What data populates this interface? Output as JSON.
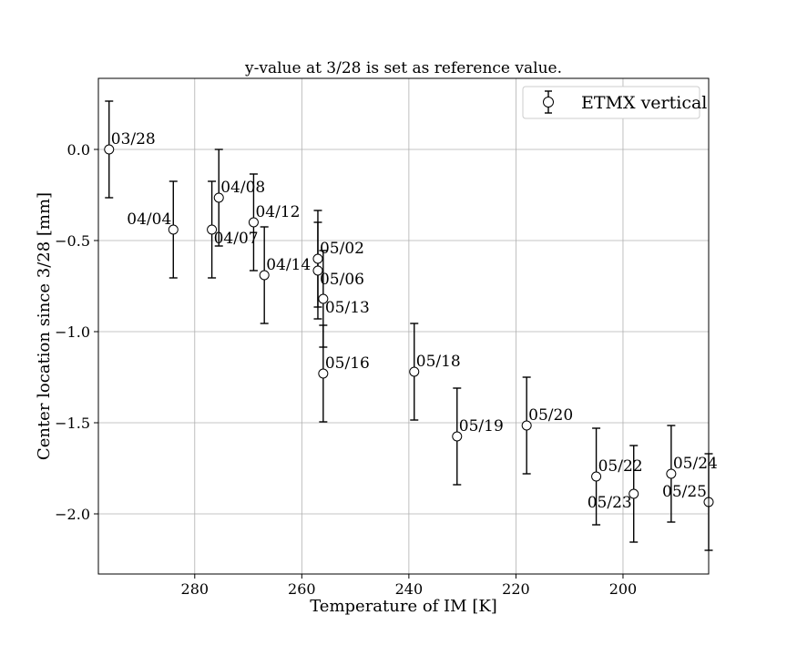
{
  "chart_data": {
    "type": "scatter",
    "title": "y-value at 3/28 is set as reference value.",
    "xlabel": "Temperature of IM [K]",
    "ylabel": "Center location since 3/28 [mm]",
    "x_inverted": true,
    "xlim": [
      298,
      184
    ],
    "ylim": [
      -2.33,
      0.39
    ],
    "xticks": [
      280,
      260,
      240,
      220,
      200
    ],
    "xtick_labels": [
      "280",
      "260",
      "240",
      "220",
      "200"
    ],
    "yticks": [
      0.0,
      -0.5,
      -1.0,
      -1.5,
      -2.0
    ],
    "ytick_labels": [
      "0.0",
      "−0.5",
      "−1.0",
      "−1.5",
      "−2.0"
    ],
    "grid": true,
    "legend": {
      "position": "top-right",
      "entries": [
        "ETMX vertical"
      ]
    },
    "series": [
      {
        "name": "ETMX vertical",
        "marker": "open-circle",
        "points": [
          {
            "label": "03/28",
            "x": 296.0,
            "y": 0.0,
            "err": 0.265,
            "label_pos": "upper-right"
          },
          {
            "label": "04/04",
            "x": 284.0,
            "y": -0.44,
            "err": 0.265,
            "label_pos": "upper-left"
          },
          {
            "label": "04/07",
            "x": 276.8,
            "y": -0.44,
            "err": 0.265,
            "label_pos": "lower-right"
          },
          {
            "label": "04/08",
            "x": 275.5,
            "y": -0.265,
            "err": 0.265,
            "label_pos": "upper-right"
          },
          {
            "label": "04/12",
            "x": 269.0,
            "y": -0.4,
            "err": 0.265,
            "label_pos": "upper-right"
          },
          {
            "label": "04/14",
            "x": 267.0,
            "y": -0.69,
            "err": 0.265,
            "label_pos": "upper-right"
          },
          {
            "label": "05/02",
            "x": 257.0,
            "y": -0.6,
            "err": 0.265,
            "label_pos": "upper-right"
          },
          {
            "label": "05/06",
            "x": 257.0,
            "y": -0.665,
            "err": 0.265,
            "label_pos": "lower-right"
          },
          {
            "label": "05/13",
            "x": 256.0,
            "y": -0.82,
            "err": 0.265,
            "label_pos": "lower-right"
          },
          {
            "label": "05/16",
            "x": 256.0,
            "y": -1.23,
            "err": 0.265,
            "label_pos": "upper-right"
          },
          {
            "label": "05/18",
            "x": 239.0,
            "y": -1.22,
            "err": 0.265,
            "label_pos": "upper-right"
          },
          {
            "label": "05/19",
            "x": 231.0,
            "y": -1.575,
            "err": 0.265,
            "label_pos": "upper-right"
          },
          {
            "label": "05/20",
            "x": 218.0,
            "y": -1.515,
            "err": 0.265,
            "label_pos": "upper-right"
          },
          {
            "label": "05/22",
            "x": 205.0,
            "y": -1.795,
            "err": 0.265,
            "label_pos": "upper-right"
          },
          {
            "label": "05/23",
            "x": 198.0,
            "y": -1.89,
            "err": 0.265,
            "label_pos": "lower-left"
          },
          {
            "label": "05/24",
            "x": 191.0,
            "y": -1.78,
            "err": 0.265,
            "label_pos": "upper-right"
          },
          {
            "label": "05/25",
            "x": 184.0,
            "y": -1.935,
            "err": 0.265,
            "label_pos": "upper-left"
          }
        ]
      }
    ]
  }
}
